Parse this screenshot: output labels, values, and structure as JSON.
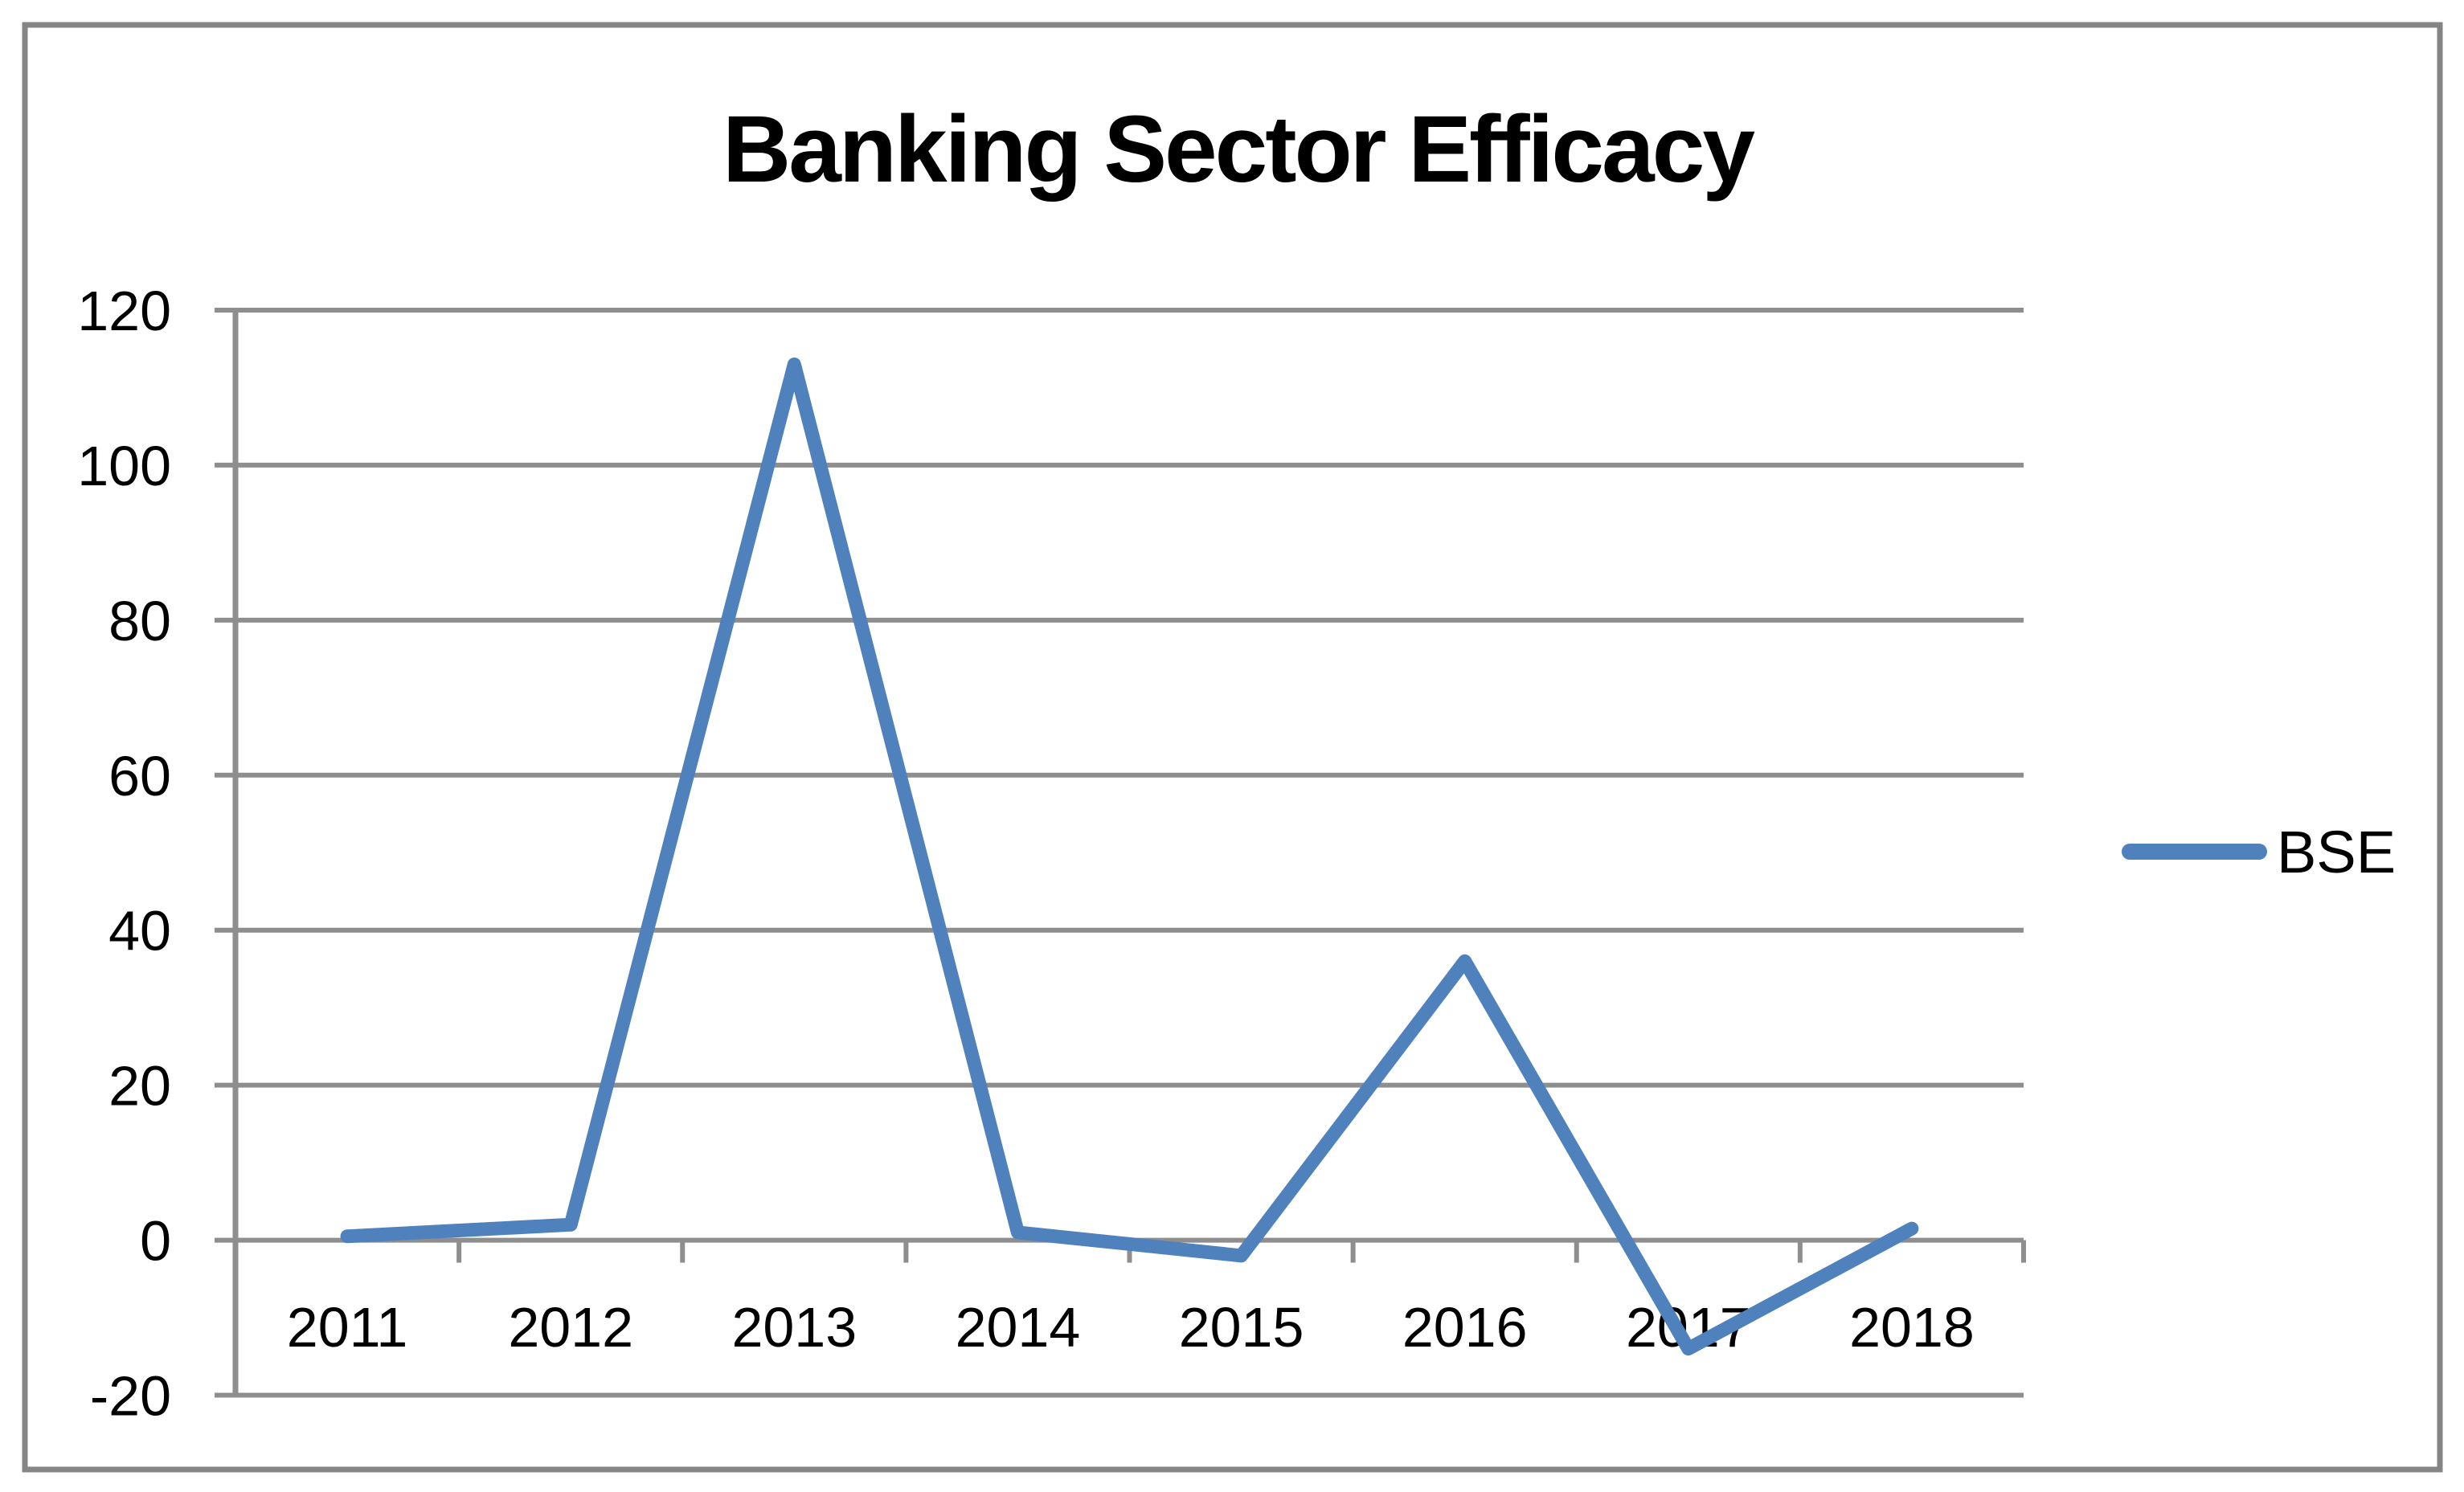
{
  "chart_data": {
    "type": "line",
    "title": "Banking Sector Efficacy",
    "categories": [
      "2011",
      "2012",
      "2013",
      "2014",
      "2015",
      "2016",
      "2017",
      "2018"
    ],
    "series": [
      {
        "name": "BSE",
        "values": [
          0.5,
          2,
          113,
          1,
          -2,
          36,
          -14,
          1.5
        ]
      }
    ],
    "xlabel": "",
    "ylabel": "",
    "ylim": [
      -20,
      120
    ],
    "y_ticks": [
      -20,
      0,
      20,
      40,
      60,
      80,
      100,
      120
    ],
    "grid": true,
    "legend_position": "right",
    "colors": {
      "series_line": "#4F81BD",
      "gridline": "#8E8E8E",
      "axis_line": "#8E8E8E",
      "chart_border": "#858585",
      "text": "#000000",
      "background": "#FFFFFF"
    }
  }
}
